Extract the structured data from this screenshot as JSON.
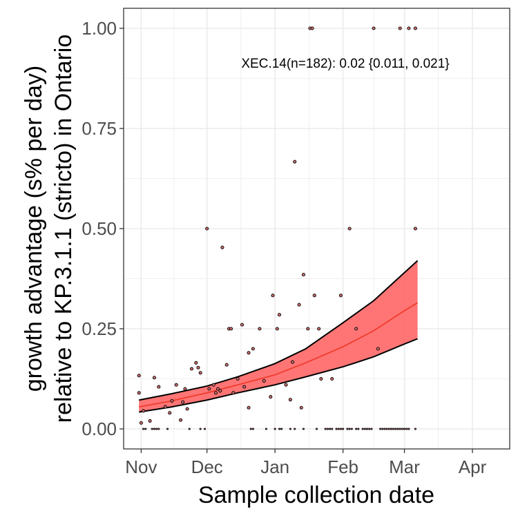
{
  "chart_data": {
    "type": "scatter",
    "title": "",
    "xlabel": "Sample collection date",
    "ylabel_lines": [
      "growth advantage (s% per day)",
      "relative to KP.3.1.1 (stricto) in Ontario"
    ],
    "annotation": "XEC.14(n=182): 0.02 {0.011, 0.021}",
    "x_ticks": [
      {
        "label": "Nov",
        "date": "2024-11-01"
      },
      {
        "label": "Dec",
        "date": "2024-12-01"
      },
      {
        "label": "Jan",
        "date": "2025-01-01"
      },
      {
        "label": "Feb",
        "date": "2025-02-01"
      },
      {
        "label": "Mar",
        "date": "2025-03-01"
      },
      {
        "label": "Apr",
        "date": "2025-04-01"
      }
    ],
    "xlim": [
      "2024-10-24",
      "2025-04-18"
    ],
    "y_ticks": [
      {
        "label": "0.00",
        "value": 0.0
      },
      {
        "label": "0.25",
        "value": 0.25
      },
      {
        "label": "0.50",
        "value": 0.5
      },
      {
        "label": "0.75",
        "value": 0.75
      },
      {
        "label": "1.00",
        "value": 1.0
      }
    ],
    "ylim": [
      -0.05,
      1.05
    ],
    "grid": true,
    "colors": {
      "fit_line": "#ef3b2c",
      "ribbon": "#ff6666",
      "ribbon_border": "#000000",
      "points": "#c96b6b",
      "grid": "#ebebeb",
      "panel_border": "#333333"
    },
    "fit": {
      "x": [
        "2024-10-31",
        "2024-11-15",
        "2024-12-01",
        "2024-12-15",
        "2025-01-01",
        "2025-01-15",
        "2025-02-01",
        "2025-02-15",
        "2025-03-01",
        "2025-03-07"
      ],
      "y": [
        0.055,
        0.07,
        0.09,
        0.11,
        0.135,
        0.165,
        0.205,
        0.245,
        0.295,
        0.315
      ],
      "lower": [
        0.042,
        0.055,
        0.072,
        0.09,
        0.11,
        0.13,
        0.155,
        0.18,
        0.212,
        0.225
      ],
      "upper": [
        0.072,
        0.088,
        0.107,
        0.13,
        0.163,
        0.2,
        0.265,
        0.32,
        0.39,
        0.42
      ]
    },
    "points": [
      {
        "x": "2024-10-31",
        "y": 0.133
      },
      {
        "x": "2024-10-31",
        "y": 0.09
      },
      {
        "x": "2024-11-01",
        "y": 0.015
      },
      {
        "x": "2024-11-02",
        "y": 0.045
      },
      {
        "x": "2024-11-05",
        "y": 0.02
      },
      {
        "x": "2024-11-07",
        "y": 0.128
      },
      {
        "x": "2024-11-09",
        "y": 0.105
      },
      {
        "x": "2024-11-12",
        "y": 0.055
      },
      {
        "x": "2024-11-14",
        "y": 0.04
      },
      {
        "x": "2024-11-15",
        "y": 0.07
      },
      {
        "x": "2024-11-17",
        "y": 0.11
      },
      {
        "x": "2024-11-19",
        "y": 0.022
      },
      {
        "x": "2024-11-20",
        "y": 0.067
      },
      {
        "x": "2024-11-21",
        "y": 0.1
      },
      {
        "x": "2024-11-22",
        "y": 0.05
      },
      {
        "x": "2024-11-24",
        "y": 0.15
      },
      {
        "x": "2024-11-26",
        "y": 0.165
      },
      {
        "x": "2024-11-27",
        "y": 0.153
      },
      {
        "x": "2024-11-28",
        "y": 0.14
      },
      {
        "x": "2024-12-01",
        "y": 0.5
      },
      {
        "x": "2024-12-02",
        "y": 0.1
      },
      {
        "x": "2024-12-04",
        "y": 0.11
      },
      {
        "x": "2024-12-05",
        "y": 0.09
      },
      {
        "x": "2024-12-06",
        "y": 0.1
      },
      {
        "x": "2024-12-07",
        "y": 0.095
      },
      {
        "x": "2024-12-08",
        "y": 0.453
      },
      {
        "x": "2024-12-10",
        "y": 0.16
      },
      {
        "x": "2024-12-11",
        "y": 0.25
      },
      {
        "x": "2024-12-12",
        "y": 0.25
      },
      {
        "x": "2024-12-13",
        "y": 0.09
      },
      {
        "x": "2024-12-15",
        "y": 0.125
      },
      {
        "x": "2024-12-17",
        "y": 0.26
      },
      {
        "x": "2024-12-18",
        "y": 0.105
      },
      {
        "x": "2024-12-20",
        "y": 0.053
      },
      {
        "x": "2024-12-20",
        "y": 0.19
      },
      {
        "x": "2024-12-22",
        "y": 0.2
      },
      {
        "x": "2024-12-25",
        "y": 0.25
      },
      {
        "x": "2024-12-27",
        "y": 0.12
      },
      {
        "x": "2024-12-30",
        "y": 0.08
      },
      {
        "x": "2024-12-31",
        "y": 0.333
      },
      {
        "x": "2025-01-02",
        "y": 0.25
      },
      {
        "x": "2025-01-03",
        "y": 0.285
      },
      {
        "x": "2025-01-06",
        "y": 0.11
      },
      {
        "x": "2025-01-08",
        "y": 0.073
      },
      {
        "x": "2025-01-09",
        "y": 0.167
      },
      {
        "x": "2025-01-10",
        "y": 0.667
      },
      {
        "x": "2025-01-12",
        "y": 0.31
      },
      {
        "x": "2025-01-13",
        "y": 0.053
      },
      {
        "x": "2025-01-14",
        "y": 0.385
      },
      {
        "x": "2025-01-16",
        "y": 0.25
      },
      {
        "x": "2025-01-17",
        "y": 1.0
      },
      {
        "x": "2025-01-18",
        "y": 1.0
      },
      {
        "x": "2025-01-19",
        "y": 0.333
      },
      {
        "x": "2025-01-21",
        "y": 0.25
      },
      {
        "x": "2025-01-22",
        "y": 0.125
      },
      {
        "x": "2025-01-27",
        "y": 0.125
      },
      {
        "x": "2025-01-31",
        "y": 0.333
      },
      {
        "x": "2025-02-04",
        "y": 0.5
      },
      {
        "x": "2025-02-07",
        "y": 0.25
      },
      {
        "x": "2025-02-15",
        "y": 1.0
      },
      {
        "x": "2025-02-17",
        "y": 0.2
      },
      {
        "x": "2025-02-27",
        "y": 1.0
      },
      {
        "x": "2025-03-03",
        "y": 1.0
      },
      {
        "x": "2025-03-06",
        "y": 0.5
      },
      {
        "x": "2025-03-06",
        "y": 1.0
      },
      {
        "x": "2024-11-02",
        "y": 0.0
      },
      {
        "x": "2024-11-03",
        "y": 0.0
      },
      {
        "x": "2024-11-06",
        "y": 0.0
      },
      {
        "x": "2024-11-07",
        "y": 0.0
      },
      {
        "x": "2024-11-08",
        "y": 0.0
      },
      {
        "x": "2024-11-09",
        "y": 0.0
      },
      {
        "x": "2024-11-13",
        "y": 0.0
      },
      {
        "x": "2024-11-23",
        "y": 0.0
      },
      {
        "x": "2024-11-28",
        "y": 0.0
      },
      {
        "x": "2024-11-30",
        "y": 0.0
      },
      {
        "x": "2024-12-21",
        "y": 0.0
      },
      {
        "x": "2024-12-22",
        "y": 0.0
      },
      {
        "x": "2024-12-28",
        "y": 0.0
      },
      {
        "x": "2025-01-01",
        "y": 0.0
      },
      {
        "x": "2025-01-03",
        "y": 0.0
      },
      {
        "x": "2025-01-04",
        "y": 0.0
      },
      {
        "x": "2025-01-08",
        "y": 0.0
      },
      {
        "x": "2025-01-10",
        "y": 0.0
      },
      {
        "x": "2025-01-14",
        "y": 0.0
      },
      {
        "x": "2025-01-20",
        "y": 0.0
      },
      {
        "x": "2025-01-24",
        "y": 0.0
      },
      {
        "x": "2025-01-25",
        "y": 0.0
      },
      {
        "x": "2025-01-26",
        "y": 0.0
      },
      {
        "x": "2025-01-27",
        "y": 0.0
      },
      {
        "x": "2025-01-29",
        "y": 0.0
      },
      {
        "x": "2025-01-30",
        "y": 0.0
      },
      {
        "x": "2025-01-31",
        "y": 0.0
      },
      {
        "x": "2025-02-01",
        "y": 0.0
      },
      {
        "x": "2025-02-03",
        "y": 0.0
      },
      {
        "x": "2025-02-04",
        "y": 0.0
      },
      {
        "x": "2025-02-05",
        "y": 0.0
      },
      {
        "x": "2025-02-07",
        "y": 0.0
      },
      {
        "x": "2025-02-08",
        "y": 0.0
      },
      {
        "x": "2025-02-10",
        "y": 0.0
      },
      {
        "x": "2025-02-11",
        "y": 0.0
      },
      {
        "x": "2025-02-12",
        "y": 0.0
      },
      {
        "x": "2025-02-13",
        "y": 0.0
      },
      {
        "x": "2025-02-14",
        "y": 0.0
      },
      {
        "x": "2025-02-18",
        "y": 0.0
      },
      {
        "x": "2025-02-19",
        "y": 0.0
      },
      {
        "x": "2025-02-20",
        "y": 0.0
      },
      {
        "x": "2025-02-21",
        "y": 0.0
      },
      {
        "x": "2025-02-22",
        "y": 0.0
      },
      {
        "x": "2025-02-23",
        "y": 0.0
      },
      {
        "x": "2025-02-24",
        "y": 0.0
      },
      {
        "x": "2025-02-25",
        "y": 0.0
      },
      {
        "x": "2025-02-26",
        "y": 0.0
      },
      {
        "x": "2025-02-27",
        "y": 0.0
      },
      {
        "x": "2025-02-28",
        "y": 0.0
      },
      {
        "x": "2025-03-01",
        "y": 0.0
      },
      {
        "x": "2025-03-02",
        "y": 0.0
      },
      {
        "x": "2025-03-03",
        "y": 0.0
      },
      {
        "x": "2025-03-06",
        "y": 0.0
      }
    ]
  }
}
